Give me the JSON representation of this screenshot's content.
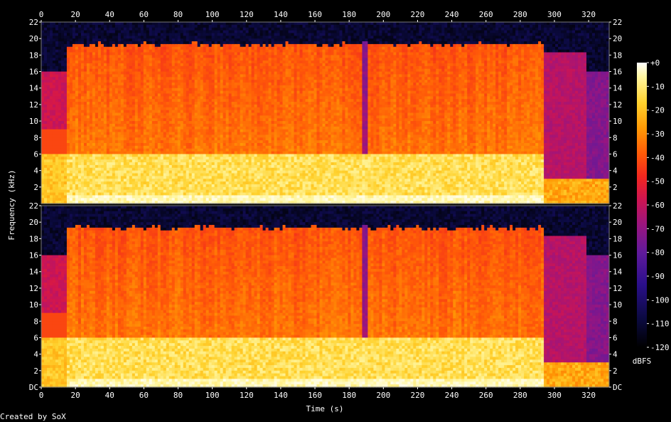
{
  "chart_data": {
    "type": "heatmap",
    "title": "",
    "xlabel": "Time (s)",
    "ylabel": "Frequency (kHz)",
    "xlim": [
      0,
      332
    ],
    "ylim": [
      0,
      22
    ],
    "x_ticks": [
      0,
      20,
      40,
      60,
      80,
      100,
      120,
      140,
      160,
      180,
      200,
      220,
      240,
      260,
      280,
      300,
      320
    ],
    "y_ticks_top": [
      "22",
      "20",
      "18",
      "16",
      "14",
      "12",
      "10",
      "8",
      "6",
      "4",
      "2"
    ],
    "y_ticks_bottom": [
      "22",
      "20",
      "18",
      "16",
      "14",
      "12",
      "10",
      "8",
      "6",
      "4",
      "2",
      "DC"
    ],
    "channels": 2,
    "colorbar": {
      "label": "dBFS",
      "ticks": [
        "+0",
        "-10",
        "-20",
        "-30",
        "-40",
        "-50",
        "-60",
        "-70",
        "-80",
        "-90",
        "-100",
        "-110",
        "-120"
      ],
      "range": [
        -120,
        0
      ]
    },
    "colormap": [
      "#000000",
      "#0b0a40",
      "#2a0f8a",
      "#5f1a9c",
      "#9a157f",
      "#cf1551",
      "#f2271f",
      "#ff5a08",
      "#ff9a05",
      "#ffd22e",
      "#fff6a0",
      "#ffffff"
    ]
  },
  "footer": {
    "text": "Created by SoX"
  }
}
